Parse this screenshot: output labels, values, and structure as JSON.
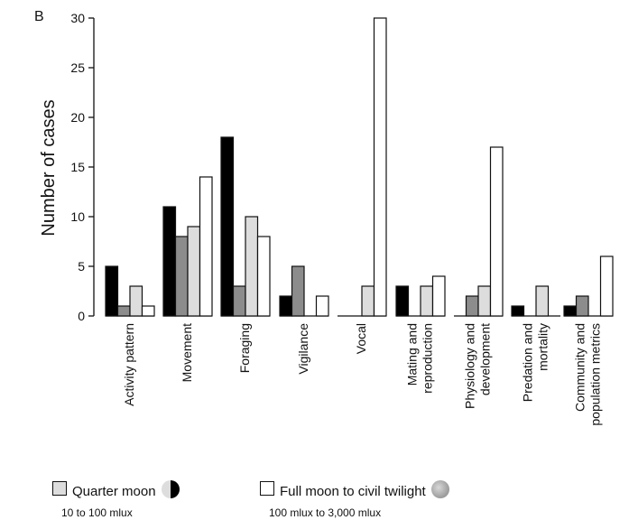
{
  "panel_label": "B",
  "chart_data": {
    "type": "bar",
    "title": "",
    "xlabel": "",
    "ylabel": "Number of cases",
    "ylim": [
      0,
      30
    ],
    "yticks": [
      0,
      5,
      10,
      15,
      20,
      25,
      30
    ],
    "categories": [
      [
        "Activity pattern"
      ],
      [
        "Movement"
      ],
      [
        "Foraging"
      ],
      [
        "Vigilance"
      ],
      [
        "Vocal"
      ],
      [
        "Mating and",
        "reproduction"
      ],
      [
        "Physiology and",
        "development"
      ],
      [
        "Predation and",
        "mortality"
      ],
      [
        "Community and",
        "population metrics"
      ]
    ],
    "series": [
      {
        "color": "#000000",
        "values": [
          5,
          11,
          18,
          2,
          0,
          3,
          0,
          1,
          1
        ]
      },
      {
        "color": "#8c8c8c",
        "values": [
          1,
          8,
          3,
          5,
          0,
          0,
          2,
          0,
          2
        ]
      },
      {
        "name": "Quarter moon",
        "color": "#dddddd",
        "values": [
          3,
          9,
          10,
          0,
          3,
          3,
          3,
          3,
          0
        ]
      },
      {
        "name": "Full moon to civil twilight",
        "color": "#ffffff",
        "values": [
          1,
          14,
          8,
          2,
          30,
          4,
          17,
          0,
          6
        ]
      }
    ],
    "grid": false
  },
  "legend": [
    {
      "label": "Quarter moon",
      "range": "10 to 100 mlux",
      "color": "#dddddd",
      "moon_icon": "half-moon-icon"
    },
    {
      "label": "Full moon to civil twilight",
      "range": "100 mlux to 3,000 mlux",
      "color": "#ffffff",
      "moon_icon": "full-moon-icon"
    }
  ]
}
